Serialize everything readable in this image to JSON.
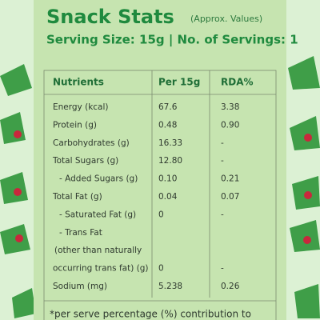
{
  "header": {
    "title": "Snack Stats",
    "subtitle": "(Approx. Values)",
    "serving": "Serving Size: 15g | No. of Servings: 1"
  },
  "table": {
    "columns": [
      "Nutrients",
      "Per 15g",
      "RDA%"
    ],
    "rows": [
      [
        "Energy (kcal)",
        "67.6",
        "3.38"
      ],
      [
        "Protein (g)",
        "0.48",
        "0.90"
      ],
      [
        "Carbohydrates (g)",
        "16.33",
        "-"
      ],
      [
        "Total Sugars (g)",
        "12.80",
        "-"
      ],
      [
        "- Added Sugars (g)",
        "0.10",
        "0.21"
      ],
      [
        "Total Fat (g)",
        "0.04",
        "0.07"
      ],
      [
        "- Saturated Fat (g)",
        "0",
        "-"
      ],
      [
        "- Trans Fat"
      ],
      [
        "(other  than naturally"
      ],
      [
        "occurring trans fat) (g)",
        "0",
        "-"
      ],
      [
        "Sodium (mg)",
        "5.238",
        "0.26"
      ]
    ]
  },
  "footnote": "*per serve percentage (%) contribution to"
}
